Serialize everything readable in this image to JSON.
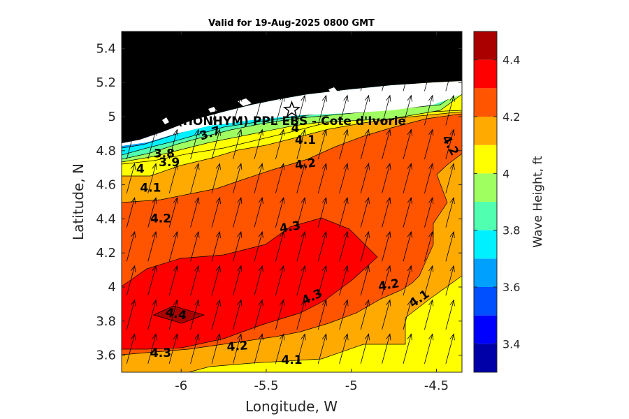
{
  "chart_data": {
    "type": "heatmap",
    "title": "Valid for 19-Aug-2025 0800 GMT",
    "xlabel": "Longitude, W",
    "ylabel": "Latitude, N",
    "xlim": [
      -6.35,
      -4.35
    ],
    "ylim": [
      3.5,
      5.5
    ],
    "x_ticks": [
      -6,
      -5.5,
      -5,
      -4.5
    ],
    "x_tick_labels": [
      "-6",
      "-5.5",
      "-5",
      "-4.5"
    ],
    "y_ticks": [
      3.6,
      3.8,
      4,
      4.2,
      4.4,
      4.6,
      4.8,
      5,
      5.2,
      5.4
    ],
    "y_tick_labels": [
      "3.6",
      "3.8",
      "4",
      "4.2",
      "4.4",
      "4.6",
      "4.8",
      "5",
      "5.2",
      "5.4"
    ],
    "colorbar": {
      "label": "Wave Height, ft",
      "range": [
        3.3,
        4.5
      ],
      "levels": [
        3.3,
        3.4,
        3.5,
        3.6,
        3.7,
        3.8,
        3.9,
        4.0,
        4.1,
        4.2,
        4.3,
        4.4,
        4.5
      ],
      "colors": [
        "#0000a8",
        "#0000ff",
        "#0050ff",
        "#00a0ff",
        "#00f0ff",
        "#50ffb0",
        "#a0ff60",
        "#ffff00",
        "#ffaa00",
        "#ff5500",
        "#ff0000",
        "#aa0000"
      ],
      "tick_values": [
        3.4,
        3.6,
        3.8,
        4,
        4.2,
        4.4
      ],
      "tick_labels": [
        "3.4",
        "3.6",
        "3.8",
        "4",
        "4.2",
        "4.4"
      ]
    },
    "contour_labels": [
      {
        "text": "3.7",
        "lon": -5.83,
        "lat": 4.9,
        "rotate": -18
      },
      {
        "text": "3.8",
        "lon": -6.1,
        "lat": 4.78,
        "rotate": 0
      },
      {
        "text": "3.9",
        "lon": -6.07,
        "lat": 4.73,
        "rotate": 0
      },
      {
        "text": "4",
        "lon": -6.24,
        "lat": 4.69,
        "rotate": 0
      },
      {
        "text": "4.1",
        "lon": -6.18,
        "lat": 4.58,
        "rotate": 0
      },
      {
        "text": "4",
        "lon": -5.33,
        "lat": 4.93,
        "rotate": 0
      },
      {
        "text": "4.1",
        "lon": -5.27,
        "lat": 4.86,
        "rotate": 0
      },
      {
        "text": "4.2",
        "lon": -5.27,
        "lat": 4.72,
        "rotate": -8
      },
      {
        "text": "4.2",
        "lon": -4.42,
        "lat": 4.83,
        "rotate": 60
      },
      {
        "text": "4.2",
        "lon": -6.12,
        "lat": 4.4,
        "rotate": 0
      },
      {
        "text": "4.3",
        "lon": -5.36,
        "lat": 4.35,
        "rotate": -10
      },
      {
        "text": "4.4",
        "lon": -6.03,
        "lat": 3.84,
        "rotate": 10
      },
      {
        "text": "4.3",
        "lon": -5.23,
        "lat": 3.94,
        "rotate": -25
      },
      {
        "text": "4.2",
        "lon": -4.78,
        "lat": 4.01,
        "rotate": -10
      },
      {
        "text": "4.1",
        "lon": -4.6,
        "lat": 3.93,
        "rotate": -35
      },
      {
        "text": "4.3",
        "lon": -6.12,
        "lat": 3.61,
        "rotate": 0
      },
      {
        "text": "4.2",
        "lon": -5.67,
        "lat": 3.65,
        "rotate": -5
      },
      {
        "text": "4.1",
        "lon": -5.35,
        "lat": 3.57,
        "rotate": 0
      }
    ],
    "site": {
      "name": "(HONHYM) PPL EBS - Cote d'Ivorie",
      "lon": -5.35,
      "lat": 5.04
    },
    "wind_direction": "NNE",
    "arrow_spacing_deg": [
      0.125,
      0.2
    ],
    "colors": {
      "land": "#000000",
      "coast_gap": "#ffffff"
    }
  }
}
